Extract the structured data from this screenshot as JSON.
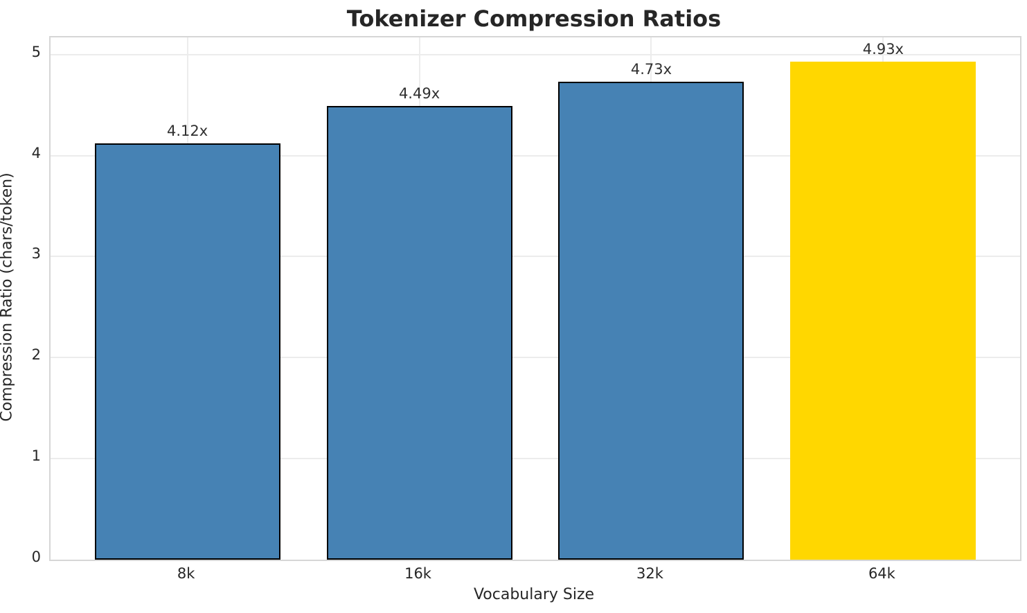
{
  "chart_data": {
    "type": "bar",
    "title": "Tokenizer Compression Ratios",
    "xlabel": "Vocabulary Size",
    "ylabel": "Compression Ratio (chars/token)",
    "categories": [
      "8k",
      "16k",
      "32k",
      "64k"
    ],
    "values": [
      4.12,
      4.49,
      4.73,
      4.93
    ],
    "bar_labels": [
      "4.12x",
      "4.49x",
      "4.73x",
      "4.93x"
    ],
    "bar_colors": [
      "#4682B4",
      "#4682B4",
      "#4682B4",
      "#FFD700"
    ],
    "bar_edge_colors": [
      "#000000",
      "#000000",
      "#000000",
      "none"
    ],
    "yticks": [
      0,
      1,
      2,
      3,
      4,
      5
    ],
    "ylim": [
      0,
      5.17
    ],
    "grid": true,
    "legend": "none",
    "colors": {
      "default_bar": "#4682B4",
      "highlight_bar": "#FFD700",
      "grid": "#ececec",
      "spine": "#d6d6d6",
      "text": "#262626"
    }
  }
}
